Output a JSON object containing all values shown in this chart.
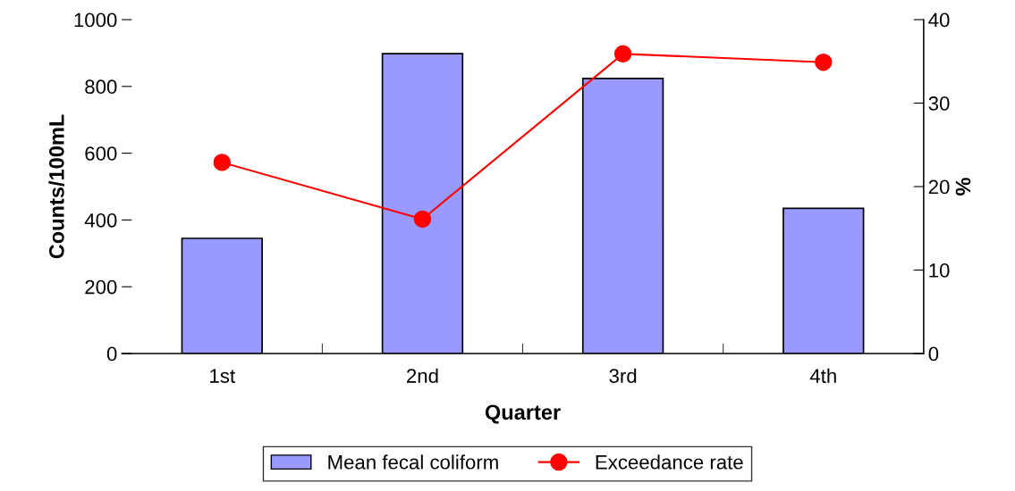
{
  "chart_data": {
    "type": "bar",
    "xlabel": "Quarter",
    "ylabel": "Counts/100mL",
    "y2label": "%",
    "categories": [
      "1st",
      "2nd",
      "3rd",
      "4th"
    ],
    "series": [
      {
        "name": "Mean fecal coliform",
        "color": "#9999ff",
        "values": [
          345,
          898,
          824,
          435
        ]
      },
      {
        "name": "Exceedance rate",
        "type": "line",
        "axis": "y2",
        "color": "#ff0000",
        "marker": "circle",
        "values": [
          22.9,
          16.1,
          35.9,
          34.9
        ]
      }
    ],
    "ylim": [
      0,
      1000
    ],
    "yticks": [
      0,
      200,
      400,
      600,
      800,
      1000
    ],
    "y2lim": [
      0,
      40
    ],
    "y2ticks": [
      0,
      10,
      20,
      30,
      40
    ],
    "grid": false,
    "legend": "bottom"
  }
}
